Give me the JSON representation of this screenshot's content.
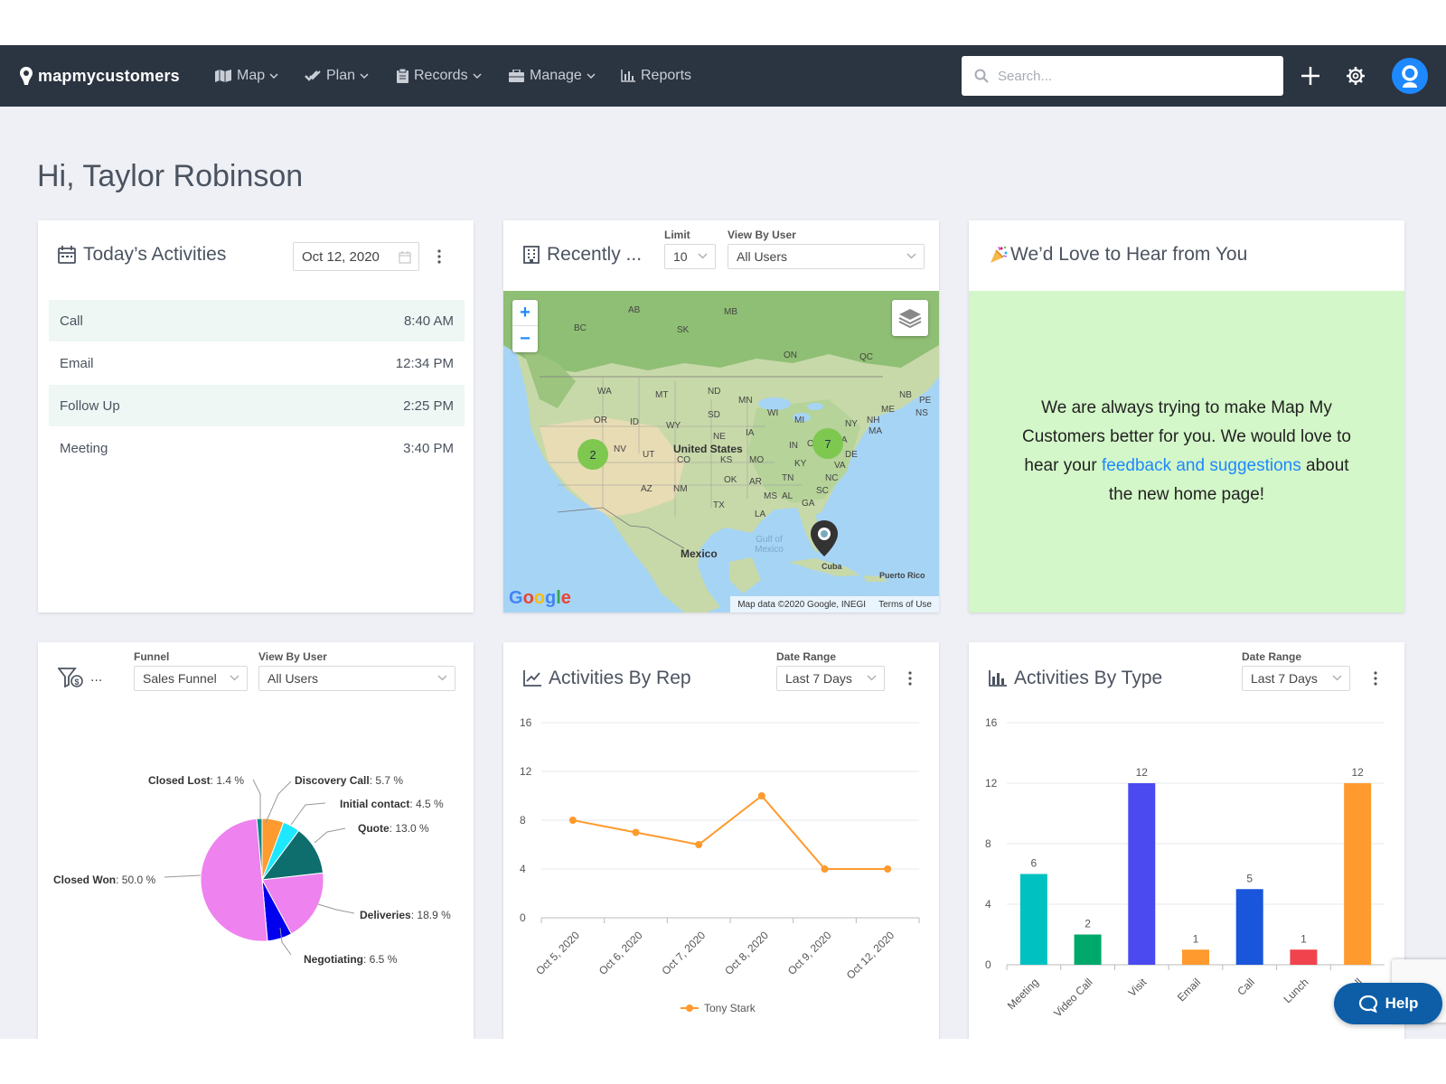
{
  "nav": {
    "brand": "mapmycustomers",
    "items": [
      {
        "label": "Map",
        "icon": "map-icon",
        "has_dropdown": true
      },
      {
        "label": "Plan",
        "icon": "check-icon",
        "has_dropdown": true
      },
      {
        "label": "Records",
        "icon": "clipboard-icon",
        "has_dropdown": true
      },
      {
        "label": "Manage",
        "icon": "briefcase-icon",
        "has_dropdown": true
      },
      {
        "label": "Reports",
        "icon": "bar-chart-icon",
        "has_dropdown": false
      }
    ],
    "search_placeholder": "Search..."
  },
  "greeting": "Hi, Taylor Robinson",
  "todays_activities": {
    "title": "Today’s Activities",
    "date": "Oct 12, 2020",
    "rows": [
      {
        "name": "Call",
        "time": "8:40 AM"
      },
      {
        "name": "Email",
        "time": "12:34 PM"
      },
      {
        "name": "Follow Up",
        "time": "2:25 PM"
      },
      {
        "name": "Meeting",
        "time": "3:40 PM"
      }
    ]
  },
  "recently": {
    "title": "Recently ...",
    "limit_label": "Limit",
    "limit_value": "10",
    "user_label": "View By User",
    "user_value": "All Users",
    "map": {
      "clusters": [
        "2",
        "7"
      ],
      "labels": {
        "AB": "AB",
        "BC": "BC",
        "SK": "SK",
        "MB": "MB",
        "ON": "ON",
        "QC": "QC",
        "NB": "NB",
        "PE": "PE",
        "NS": "NS",
        "WA": "WA",
        "MT": "MT",
        "ND": "ND",
        "MN": "MN",
        "OR": "OR",
        "ID": "ID",
        "WY": "WY",
        "SD": "SD",
        "WI": "WI",
        "MI": "MI",
        "NE": "NE",
        "IA": "IA",
        "NV": "NV",
        "UT": "UT",
        "CO": "CO",
        "KS": "KS",
        "MO": "MO",
        "IN": "IN",
        "OH": "OH",
        "PA": "PA",
        "NY": "NY",
        "ME": "ME",
        "NH": "NH",
        "MA": "MA",
        "KY": "KY",
        "DE": "DE",
        "VA": "VA",
        "NC": "NC",
        "TN": "TN",
        "AZ": "AZ",
        "NM": "NM",
        "OK": "OK",
        "AR": "AR",
        "MS": "MS",
        "AL": "AL",
        "GA": "GA",
        "SC": "SC",
        "TX": "TX",
        "LA": "LA",
        "country_us": "United States",
        "country_mexico": "Mexico",
        "cuba": "Cuba",
        "puerto_rico": "Puerto Rico",
        "gulf": "Gulf of Mexico"
      },
      "google": "Google",
      "attribution": "Map data ©2020 Google, INEGI",
      "terms": "Terms of Use"
    }
  },
  "feedback": {
    "title": "We’d Love to Hear from You",
    "text_before": "We are always trying to make Map My Customers better for you. We would love to hear your ",
    "link_text": "feedback and suggestions",
    "text_after": " about the new home page!"
  },
  "funnel_card": {
    "title": "...",
    "funnel_label": "Funnel",
    "funnel_value": "Sales Funnel",
    "user_label": "View By User",
    "user_value": "All Users",
    "chart_data": {
      "type": "pie",
      "slices": [
        {
          "name": "Discovery Call",
          "value": 5.7,
          "color": "#ff9a2e"
        },
        {
          "name": "Initial contact",
          "value": 4.5,
          "color": "#1ee8ff"
        },
        {
          "name": "Quote",
          "value": 13.0,
          "color": "#0e6e6e"
        },
        {
          "name": "Deliveries",
          "value": 18.9,
          "color": "#ee82ee"
        },
        {
          "name": "Negotiating",
          "value": 6.5,
          "color": "#0000ee"
        },
        {
          "name": "Closed Won",
          "value": 50.0,
          "color": "#ee82ee"
        },
        {
          "name": "Closed Lost",
          "value": 1.4,
          "color": "#0f8a8a"
        }
      ],
      "labels": [
        {
          "name": "Closed Lost",
          "pct": "1.4 %"
        },
        {
          "name": "Discovery Call",
          "pct": "5.7 %"
        },
        {
          "name": "Initial contact",
          "pct": "4.5 %"
        },
        {
          "name": "Quote",
          "pct": "13.0 %"
        },
        {
          "name": "Closed Won",
          "pct": "50.0 %"
        },
        {
          "name": "Deliveries",
          "pct": "18.9 %"
        },
        {
          "name": "Negotiating",
          "pct": "6.5 %"
        }
      ]
    }
  },
  "activities_by_rep": {
    "title": "Activities By Rep",
    "range_label": "Date Range",
    "range_value": "Last 7 Days",
    "chart_data": {
      "type": "line",
      "x": [
        "Oct 5, 2020",
        "Oct 6, 2020",
        "Oct 7, 2020",
        "Oct 8, 2020",
        "Oct 9, 2020",
        "Oct 12, 2020"
      ],
      "series": [
        {
          "name": "Tony Stark",
          "values": [
            8,
            7,
            6,
            10,
            4,
            4
          ],
          "color": "#ff9a2e"
        }
      ],
      "ylim": [
        0,
        16
      ],
      "yticks": [
        "0",
        "4",
        "8",
        "12",
        "16"
      ],
      "grid": true,
      "legend": "bottom"
    }
  },
  "activities_by_type": {
    "title": "Activities By Type",
    "range_label": "Date Range",
    "range_value": "Last 7 Days",
    "chart_data": {
      "type": "bar",
      "categories": [
        "Meeting",
        "Video Call",
        "Visit",
        "Email",
        "Call",
        "Lunch",
        "Follow Up"
      ],
      "category_labels_visible": [
        "Meeting",
        "Video Call",
        "Visit",
        "Email",
        "Call",
        "Lunch",
        "Foll"
      ],
      "values": [
        6,
        2,
        12,
        1,
        5,
        1,
        12
      ],
      "colors": [
        "#00c1c1",
        "#00a86b",
        "#4a4af0",
        "#ff9a2e",
        "#1a56db",
        "#f0434e",
        "#ff9a2e"
      ],
      "ylim": [
        0,
        16
      ],
      "yticks": [
        "0",
        "4",
        "8",
        "12",
        "16"
      ],
      "grid": true
    }
  },
  "help": {
    "label": "Help"
  }
}
